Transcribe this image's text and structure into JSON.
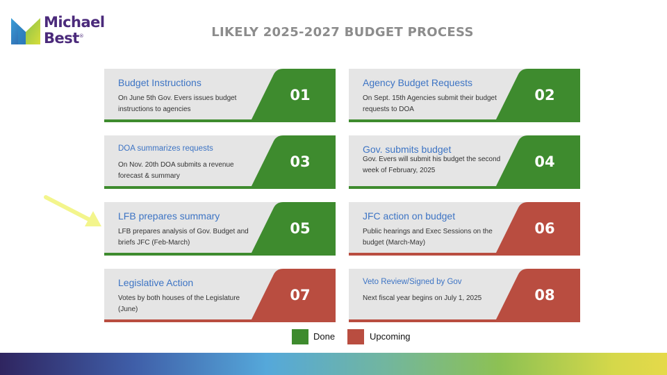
{
  "logo": {
    "line1": "Michael",
    "line2": "Best",
    "reg": "®"
  },
  "title": "LIKELY 2025-2027 BUDGET PROCESS",
  "colors": {
    "done": "#3e8b2e",
    "upcoming": "#b94d40",
    "card_bg": "#e5e5e5",
    "title_blue": "#3d74c4"
  },
  "cards": [
    {
      "num": "01",
      "title": "Budget Instructions",
      "desc": "On June 5th Gov. Evers issues budget instructions to agencies",
      "status": "done"
    },
    {
      "num": "02",
      "title": "Agency Budget Requests",
      "desc": "On Sept. 15th Agencies submit their budget requests to DOA",
      "status": "done"
    },
    {
      "num": "03",
      "title": "DOA summarizes requests",
      "desc": "On Nov. 20th DOA submits a revenue forecast & summary",
      "status": "done"
    },
    {
      "num": "04",
      "title": "Gov. submits budget",
      "desc": "Gov. Evers will submit his budget the second week of February, 2025",
      "status": "done"
    },
    {
      "num": "05",
      "title": "LFB prepares summary",
      "desc": "LFB prepares analysis of Gov. Budget and briefs JFC (Feb-March)",
      "status": "done"
    },
    {
      "num": "06",
      "title": "JFC action on budget",
      "desc": "Public hearings and Exec Sessions on the budget (March-May)",
      "status": "upcoming"
    },
    {
      "num": "07",
      "title": "Legislative Action",
      "desc": "Votes by both houses of the Legislature (June)",
      "status": "upcoming"
    },
    {
      "num": "08",
      "title": "Veto Review/Signed by Gov",
      "desc": "Next fiscal year begins on July 1, 2025",
      "status": "upcoming"
    }
  ],
  "legend": {
    "done": "Done",
    "upcoming": "Upcoming"
  },
  "icons": {
    "logo": "michael-best-logo-icon",
    "pointer": "yellow-arrow-icon"
  }
}
